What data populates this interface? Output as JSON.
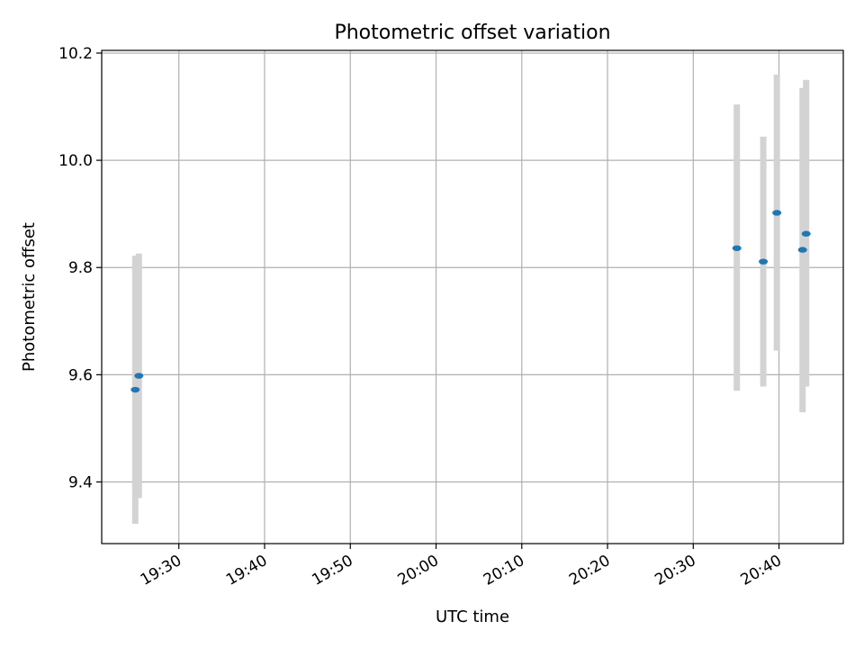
{
  "chart_data": {
    "type": "scatter",
    "title": "Photometric offset variation",
    "xlabel": "UTC time",
    "ylabel": "Photometric offset",
    "x_axis_type": "time",
    "xlim": [
      "19:21:00",
      "20:47:30"
    ],
    "ylim": [
      9.285,
      10.205
    ],
    "grid": true,
    "x_ticks": [
      "19:30",
      "19:40",
      "19:50",
      "20:00",
      "20:10",
      "20:20",
      "20:30",
      "20:40"
    ],
    "y_ticks": [
      9.4,
      9.6,
      9.8,
      10.0,
      10.2
    ],
    "y_tick_labels": [
      "9.4",
      "9.6",
      "9.8",
      "10.0",
      "10.2"
    ],
    "marker_color": "#1f77b4",
    "errorbar_color": "#d3d3d3",
    "points": [
      {
        "x": "19:24:55",
        "y": 9.572,
        "err_low": 9.322,
        "err_high": 9.822
      },
      {
        "x": "19:25:20",
        "y": 9.598,
        "err_low": 9.37,
        "err_high": 9.826
      },
      {
        "x": "20:35:05",
        "y": 9.836,
        "err_low": 9.57,
        "err_high": 10.104
      },
      {
        "x": "20:38:10",
        "y": 9.811,
        "err_low": 9.578,
        "err_high": 10.044
      },
      {
        "x": "20:39:45",
        "y": 9.902,
        "err_low": 9.645,
        "err_high": 10.16
      },
      {
        "x": "20:42:45",
        "y": 9.833,
        "err_low": 9.53,
        "err_high": 10.135
      },
      {
        "x": "20:43:10",
        "y": 9.863,
        "err_low": 9.578,
        "err_high": 10.15
      }
    ]
  }
}
